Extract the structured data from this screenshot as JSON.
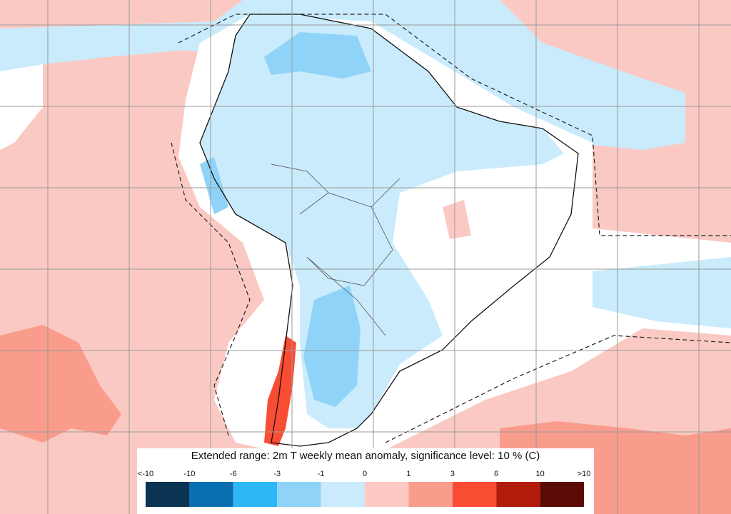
{
  "legend": {
    "title": "Extended range: 2m T weekly mean anomaly, significance level: 10 % (C)",
    "labels": [
      "<-10",
      "-10",
      "-6",
      "-3",
      "-1",
      "0",
      "1",
      "3",
      "6",
      "10",
      ">10"
    ],
    "colors": [
      "#0b3352",
      "#0a6fb1",
      "#2eb7f5",
      "#8fd4f8",
      "#c9ebfb",
      "#fdc9c4",
      "#f99c8c",
      "#f94d33",
      "#b01b0b",
      "#5a0b05"
    ]
  }
}
